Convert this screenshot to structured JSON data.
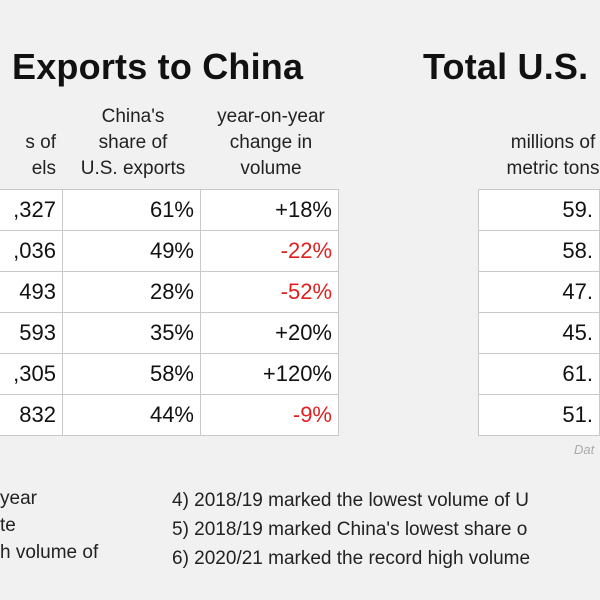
{
  "left": {
    "title": "Exports to China",
    "headers": {
      "volume": [
        "s of",
        "els"
      ],
      "share": [
        "China's",
        "share of",
        "U.S. exports"
      ],
      "change": [
        "year-on-year",
        "change in",
        "volume"
      ]
    },
    "rows": [
      {
        "volume": ",327",
        "share": "61%",
        "change": "+18%"
      },
      {
        "volume": ",036",
        "share": "49%",
        "change": "-22%"
      },
      {
        "volume": "493",
        "share": "28%",
        "change": "-52%"
      },
      {
        "volume": "593",
        "share": "35%",
        "change": "+20%"
      },
      {
        "volume": ",305",
        "share": "58%",
        "change": "+120%"
      },
      {
        "volume": "832",
        "share": "44%",
        "change": "-9%"
      }
    ]
  },
  "right": {
    "title": "Total U.S.",
    "headers": {
      "volume": [
        "millions of",
        "metric tons"
      ]
    },
    "rows": [
      "59.",
      "58.",
      "47.",
      "45.",
      "61.",
      "51."
    ],
    "source": "Dat"
  },
  "notes_left": [
    "year",
    "te",
    "h volume of"
  ],
  "notes_right": [
    "4)  2018/19 marked the lowest volume of U",
    "5)  2018/19 marked China's lowest share o",
    "6)  2020/21 marked the record high volume"
  ],
  "colors": {
    "negative": "#e02020",
    "background": "#f1f1f1",
    "border": "#c9c9c9"
  }
}
